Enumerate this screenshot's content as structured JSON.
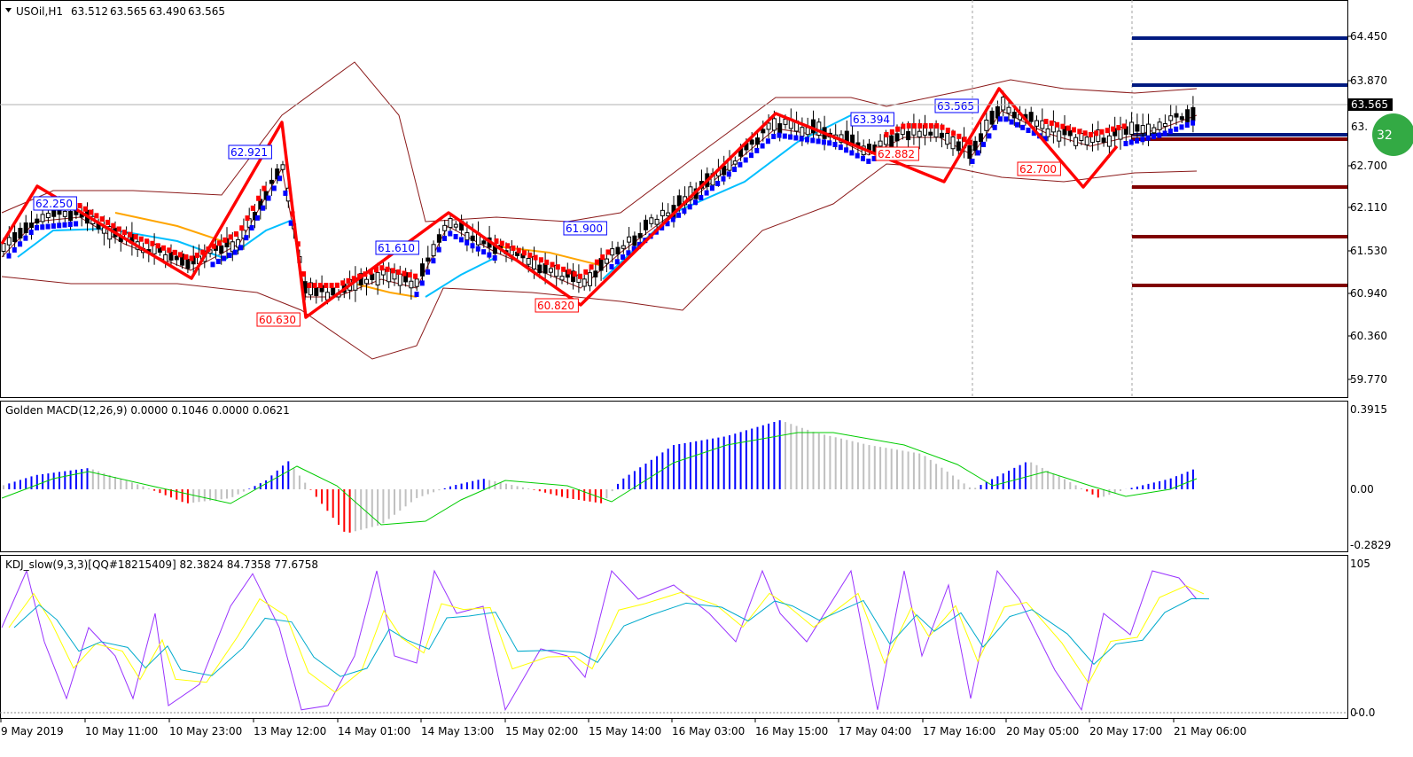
{
  "symbol": {
    "menu_icon": "triangle-down-icon",
    "title": "USOil,H1",
    "open": "63.512",
    "high": "63.565",
    "low": "63.490",
    "close": "63.565",
    "current_price": "63.565",
    "partial_price": "63.",
    "badge": "32"
  },
  "price_axis": [
    "64.450",
    "63.870",
    "62.700",
    "62.110",
    "61.530",
    "60.940",
    "60.360",
    "59.770"
  ],
  "price_range": [
    59.5,
    64.75
  ],
  "zigzag_labels": [
    {
      "text": "62.250",
      "color": "#0000ff"
    },
    {
      "text": "62.921",
      "color": "#0000ff"
    },
    {
      "text": "60.630",
      "color": "#ff0000"
    },
    {
      "text": "61.610",
      "color": "#0000ff"
    },
    {
      "text": "61.900",
      "color": "#0000ff"
    },
    {
      "text": "60.820",
      "color": "#ff0000"
    },
    {
      "text": "63.394",
      "color": "#0000ff"
    },
    {
      "text": "62.882",
      "color": "#ff0000"
    },
    {
      "text": "63.565",
      "color": "#0000ff"
    },
    {
      "text": "62.700",
      "color": "#ff0000"
    }
  ],
  "macd": {
    "title": "Golden MACD(12,26,9) 0.0000 0.1046 0.0000 0.0621",
    "axis": [
      "0.3915",
      "0.00",
      "-0.2829"
    ]
  },
  "kdj": {
    "title": "KDJ_slow(9,3,3)[QQ#18215409] 82.3824 84.7358 77.6758",
    "axis": [
      "105",
      "0",
      "-0.0"
    ]
  },
  "time_axis": [
    "9 May 2019",
    "10 May 11:00",
    "10 May 23:00",
    "13 May 12:00",
    "14 May 01:00",
    "14 May 13:00",
    "15 May 02:00",
    "15 May 14:00",
    "16 May 03:00",
    "16 May 15:00",
    "17 May 04:00",
    "17 May 16:00",
    "20 May 05:00",
    "20 May 17:00",
    "21 May 06:00"
  ],
  "colors": {
    "zigzag": "#ff0000",
    "bollinger": "#8b1a1a",
    "trend_up": "#0000ff",
    "trend_down": "#ff0000",
    "ma_fast": "#00bfff",
    "ma_slow": "#ffa500",
    "macd_up": "#0000ff",
    "macd_down": "#ff0000",
    "macd_flat": "#c0c0c0",
    "macd_signal": "#00cc00",
    "kdj_k": "#9933ff",
    "kdj_d": "#ffff00",
    "kdj_j": "#00aacc",
    "level_resistance": "#001a80",
    "level_support": "#800000",
    "badge": "#33aa44"
  }
}
